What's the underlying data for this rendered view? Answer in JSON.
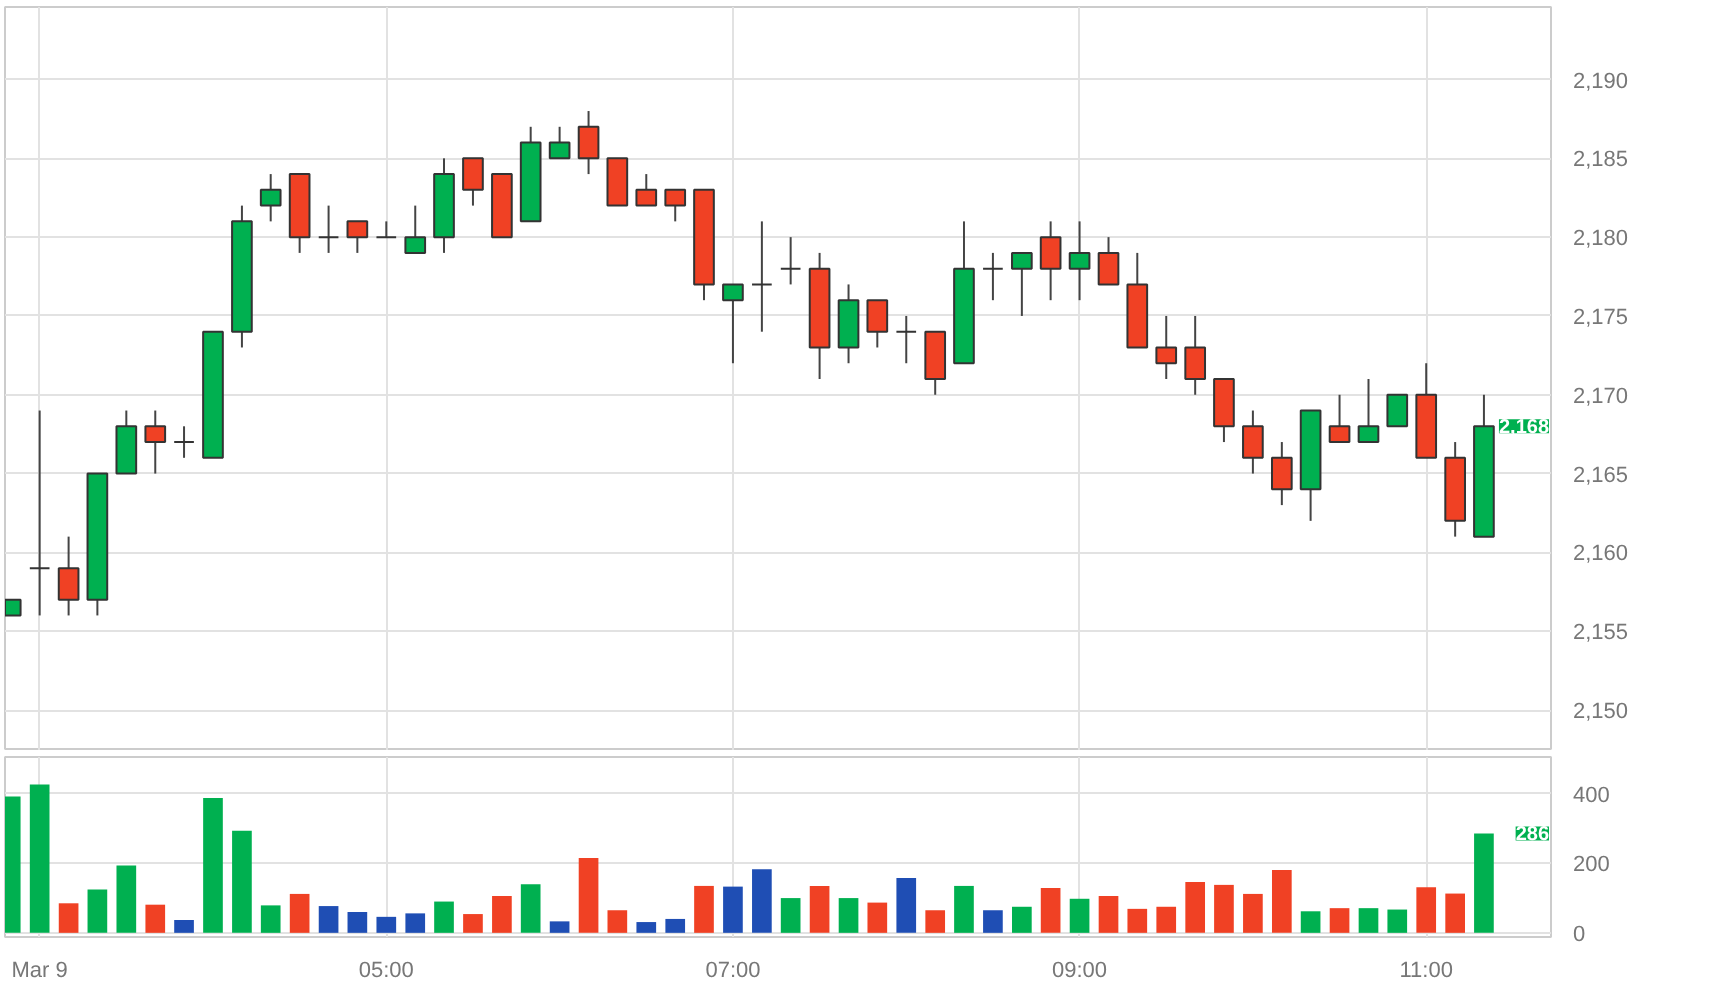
{
  "chart_data": [
    {
      "type": "candlestick",
      "x": [
        2.833,
        3,
        3.167,
        3.333,
        3.5,
        3.667,
        3.833,
        4,
        4.167,
        4.333,
        4.5,
        4.667,
        4.833,
        5,
        5.167,
        5.333,
        5.5,
        5.667,
        5.833,
        6,
        6.167,
        6.333,
        6.5,
        6.667,
        6.833,
        7,
        7.167,
        7.333,
        7.5,
        7.667,
        7.833,
        8,
        8.167,
        8.333,
        8.5,
        8.667,
        8.833,
        9,
        9.167,
        9.333,
        9.5,
        9.667,
        9.833,
        10,
        10.167,
        10.333,
        10.5,
        10.667,
        10.833,
        11,
        11.167,
        11.333
      ],
      "ohlc": [
        [
          2156,
          2157,
          2156,
          2157
        ],
        [
          2159,
          2169,
          2156,
          2159
        ],
        [
          2159,
          2161,
          2156,
          2157
        ],
        [
          2157,
          2165,
          2156,
          2165
        ],
        [
          2165,
          2169,
          2165,
          2168
        ],
        [
          2168,
          2169,
          2165,
          2167
        ],
        [
          2167,
          2168,
          2166,
          2167
        ],
        [
          2166,
          2174,
          2166,
          2174
        ],
        [
          2174,
          2182,
          2173,
          2181
        ],
        [
          2182,
          2184,
          2181,
          2183
        ],
        [
          2184,
          2184,
          2179,
          2180
        ],
        [
          2180,
          2182,
          2179,
          2180
        ],
        [
          2181,
          2181,
          2179,
          2180
        ],
        [
          2180,
          2181,
          2180,
          2180
        ],
        [
          2179,
          2182,
          2179,
          2180
        ],
        [
          2180,
          2185,
          2179,
          2184
        ],
        [
          2185,
          2185,
          2182,
          2183
        ],
        [
          2184,
          2184,
          2180,
          2180
        ],
        [
          2181,
          2187,
          2181,
          2186
        ],
        [
          2185,
          2187,
          2185,
          2186
        ],
        [
          2187,
          2188,
          2184,
          2185
        ],
        [
          2185,
          2185,
          2182,
          2182
        ],
        [
          2183,
          2184,
          2182,
          2182
        ],
        [
          2183,
          2183,
          2181,
          2182
        ],
        [
          2183,
          2183,
          2176,
          2177
        ],
        [
          2176,
          2177,
          2172,
          2177
        ],
        [
          2177,
          2181,
          2174,
          2177
        ],
        [
          2178,
          2180,
          2177,
          2178
        ],
        [
          2178,
          2179,
          2171,
          2173
        ],
        [
          2173,
          2177,
          2172,
          2176
        ],
        [
          2176,
          2176,
          2173,
          2174
        ],
        [
          2174,
          2175,
          2172,
          2174
        ],
        [
          2174,
          2174,
          2170,
          2171
        ],
        [
          2172,
          2181,
          2172,
          2178
        ],
        [
          2178,
          2179,
          2176,
          2178
        ],
        [
          2178,
          2179,
          2175,
          2179
        ],
        [
          2180,
          2181,
          2176,
          2178
        ],
        [
          2178,
          2181,
          2176,
          2179
        ],
        [
          2179,
          2180,
          2177,
          2177
        ],
        [
          2177,
          2179,
          2173,
          2173
        ],
        [
          2173,
          2175,
          2171,
          2172
        ],
        [
          2173,
          2175,
          2170,
          2171
        ],
        [
          2171,
          2171,
          2167,
          2168
        ],
        [
          2168,
          2169,
          2165,
          2166
        ],
        [
          2166,
          2167,
          2163,
          2164
        ],
        [
          2164,
          2169,
          2162,
          2169
        ],
        [
          2168,
          2170,
          2167,
          2167
        ],
        [
          2167,
          2171,
          2167,
          2168
        ],
        [
          2168,
          2170,
          2168,
          2170
        ],
        [
          2170,
          2172,
          2166,
          2166
        ],
        [
          2166,
          2167,
          2161,
          2162
        ],
        [
          2161,
          2170,
          2161,
          2168
        ]
      ],
      "colors": [
        "#00b050",
        "#333333",
        "#f04124",
        "#00b050",
        "#00b050",
        "#f04124",
        "#333333",
        "#00b050",
        "#00b050",
        "#00b050",
        "#f04124",
        "#333333",
        "#f04124",
        "#333333",
        "#00b050",
        "#00b050",
        "#f04124",
        "#f04124",
        "#00b050",
        "#00b050",
        "#f04124",
        "#f04124",
        "#f04124",
        "#f04124",
        "#f04124",
        "#00b050",
        "#333333",
        "#333333",
        "#f04124",
        "#00b050",
        "#f04124",
        "#333333",
        "#f04124",
        "#00b050",
        "#333333",
        "#00b050",
        "#f04124",
        "#00b050",
        "#f04124",
        "#f04124",
        "#f04124",
        "#f04124",
        "#f04124",
        "#f04124",
        "#f04124",
        "#00b050",
        "#f04124",
        "#00b050",
        "#00b050",
        "#f04124",
        "#f04124",
        "#00b050"
      ],
      "xlim": [
        2.8,
        11.72
      ],
      "xticks": [
        {
          "value": 3,
          "label": null
        },
        {
          "value": 5,
          "label": null
        },
        {
          "value": 7,
          "label": null
        },
        {
          "value": 9,
          "label": null
        },
        {
          "value": 11,
          "label": null
        }
      ],
      "ylim": [
        2147.4,
        2194.6
      ],
      "yticks": [
        {
          "value": 2150,
          "label": "2,150"
        },
        {
          "value": 2155,
          "label": "2,155"
        },
        {
          "value": 2160,
          "label": "2,160"
        },
        {
          "value": 2165,
          "label": "2,165"
        },
        {
          "value": 2170,
          "label": "2,170"
        },
        {
          "value": 2175,
          "label": "2,175"
        },
        {
          "value": 2180,
          "label": "2,180"
        },
        {
          "value": 2185,
          "label": "2,185"
        },
        {
          "value": 2190,
          "label": "2,190"
        }
      ],
      "grid": true,
      "tick_labels": "y",
      "annotations": [
        "2,168"
      ]
    },
    {
      "type": "bar",
      "x": [
        2.833,
        3,
        3.167,
        3.333,
        3.5,
        3.667,
        3.833,
        4,
        4.167,
        4.333,
        4.5,
        4.667,
        4.833,
        5,
        5.167,
        5.333,
        5.5,
        5.667,
        5.833,
        6,
        6.167,
        6.333,
        6.5,
        6.667,
        6.833,
        7,
        7.167,
        7.333,
        7.5,
        7.667,
        7.833,
        8,
        8.167,
        8.333,
        8.5,
        8.667,
        8.833,
        9,
        9.167,
        9.333,
        9.5,
        9.667,
        9.833,
        10,
        10.167,
        10.333,
        10.5,
        10.667,
        10.833,
        11,
        11.167,
        11.333
      ],
      "values": [
        392,
        427,
        85,
        125,
        194,
        81,
        37,
        388,
        294,
        79,
        112,
        77,
        60,
        46,
        56,
        90,
        54,
        106,
        140,
        33,
        215,
        65,
        31,
        40,
        135,
        133,
        183,
        100,
        135,
        100,
        87,
        158,
        65,
        135,
        65,
        75,
        129,
        98,
        106,
        69,
        75,
        146,
        138,
        112,
        181,
        62,
        71,
        71,
        67,
        131,
        113,
        286
      ],
      "colors": [
        "#00b050",
        "#00b050",
        "#f04124",
        "#00b050",
        "#00b050",
        "#f04124",
        "#1f4eb4",
        "#00b050",
        "#00b050",
        "#00b050",
        "#f04124",
        "#1f4eb4",
        "#1f4eb4",
        "#1f4eb4",
        "#1f4eb4",
        "#00b050",
        "#f04124",
        "#f04124",
        "#00b050",
        "#1f4eb4",
        "#f04124",
        "#f04124",
        "#1f4eb4",
        "#1f4eb4",
        "#f04124",
        "#1f4eb4",
        "#1f4eb4",
        "#00b050",
        "#f04124",
        "#00b050",
        "#f04124",
        "#1f4eb4",
        "#f04124",
        "#00b050",
        "#1f4eb4",
        "#00b050",
        "#f04124",
        "#00b050",
        "#f04124",
        "#f04124",
        "#f04124",
        "#f04124",
        "#f04124",
        "#f04124",
        "#f04124",
        "#00b050",
        "#f04124",
        "#00b050",
        "#00b050",
        "#f04124",
        "#f04124",
        "#00b050"
      ],
      "xlim": [
        2.8,
        11.72
      ],
      "xticks": [
        {
          "value": 3,
          "label": "Mar 9"
        },
        {
          "value": 5,
          "label": "05:00"
        },
        {
          "value": 7,
          "label": "07:00"
        },
        {
          "value": 9,
          "label": "09:00"
        },
        {
          "value": 11,
          "label": "11:00"
        }
      ],
      "ylim": [
        -12,
        506
      ],
      "yticks": [
        0,
        200,
        400
      ],
      "grid": true,
      "annotations": [
        "286"
      ]
    }
  ]
}
